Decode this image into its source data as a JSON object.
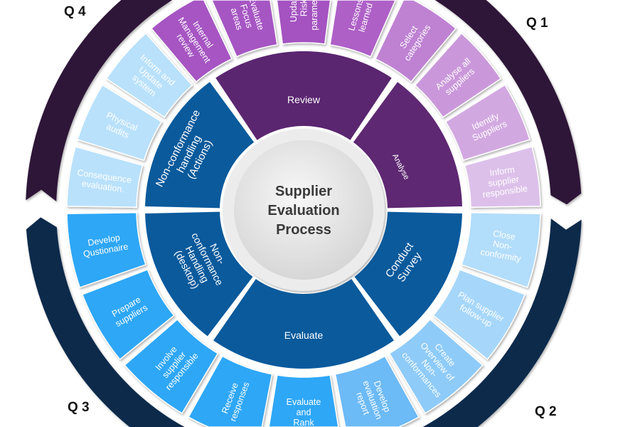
{
  "diagram": {
    "center": {
      "lines": [
        "Supplier",
        "Evaluation",
        "Process"
      ]
    },
    "quarters": {
      "q1": "Q 1",
      "q2": "Q 2",
      "q3": "Q 3",
      "q4": "Q 4"
    },
    "colors": {
      "cycle_arc_top": "#2e1438",
      "cycle_arc_bottom": "#0c2b4b",
      "phase_purple_review": "#5a2670",
      "phase_purple_analyse": "#5e2872",
      "phase_blue": "#0a5a9c",
      "center_text": "#3a3a3a"
    },
    "middle_ring": [
      {
        "label": [
          "Analyse"
        ],
        "color": "#5e2872"
      },
      {
        "label": [
          "Review"
        ],
        "color": "#5a2670"
      },
      {
        "label": [
          "Non-conformance",
          "handling",
          "(Actions)"
        ],
        "color": "#0a5a9c"
      },
      {
        "label": [
          "Non-",
          "conformance",
          "Handling",
          "(desktop)"
        ],
        "color": "#0a5a9c"
      },
      {
        "label": [
          "Evaluate"
        ],
        "color": "#0a5a9c"
      },
      {
        "label": [
          "Conduct",
          "Survey"
        ],
        "color": "#0a5a9c"
      }
    ],
    "outer_ring": [
      {
        "lines": [
          "Inform",
          "supplier",
          "responsible"
        ],
        "color": "#dcc0ea"
      },
      {
        "lines": [
          "Identify",
          "Suppliers"
        ],
        "color": "#d2a8e1"
      },
      {
        "lines": [
          "Analyse all",
          "suppliers"
        ],
        "color": "#ca98da"
      },
      {
        "lines": [
          "Select",
          "categories"
        ],
        "color": "#bf82d3"
      },
      {
        "lines": [
          "Lessons",
          "learned"
        ],
        "color": "#ae60c7"
      },
      {
        "lines": [
          "Update",
          "Risk",
          "parameters"
        ],
        "color": "#a452c1"
      },
      {
        "lines": [
          "Evaluate",
          "Focus",
          "areas"
        ],
        "color": "#a656c3"
      },
      {
        "lines": [
          "Internal",
          "Management",
          "review"
        ],
        "color": "#a655c2"
      },
      {
        "lines": [
          "Inform and",
          "Update",
          "system"
        ],
        "color": "#b9e1fc"
      },
      {
        "lines": [
          "Physical",
          "audits"
        ],
        "color": "#b9e1fc"
      },
      {
        "lines": [
          "Consequence",
          "evaluation."
        ],
        "color": "#b9e1fc"
      },
      {
        "lines": [
          "Close",
          "Non-",
          "conformity"
        ],
        "color": "#b2ddfb"
      },
      {
        "lines": [
          "Plan supplier",
          "follow-up"
        ],
        "color": "#a6d7fb"
      },
      {
        "lines": [
          "Create",
          "Overview of",
          "Non-",
          "conformances"
        ],
        "color": "#8ecbf9"
      },
      {
        "lines": [
          "Develop",
          "evaluation",
          "report"
        ],
        "color": "#6cbaf6"
      },
      {
        "lines": [
          "Evaluate",
          "and",
          "Rank"
        ],
        "color": "#2ea7f7"
      },
      {
        "lines": [
          "Receive",
          "responses"
        ],
        "color": "#2ea7f7"
      },
      {
        "lines": [
          "Involve",
          "supplier",
          "responsible"
        ],
        "color": "#2ea7f7"
      },
      {
        "lines": [
          "Prepare",
          "suppliers"
        ],
        "color": "#2ea7f7"
      },
      {
        "lines": [
          "Develop",
          "Qustionaire"
        ],
        "color": "#2ea7f7"
      }
    ]
  }
}
